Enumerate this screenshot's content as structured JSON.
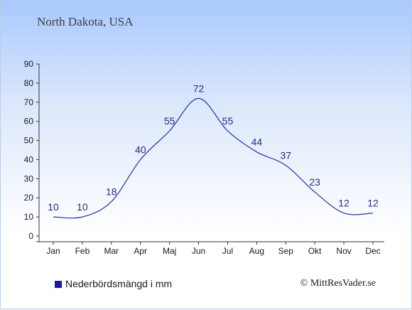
{
  "header": {
    "location": "North Dakota, USA"
  },
  "legend": {
    "label": "Nederbördsmängd i mm"
  },
  "footer": {
    "copyright": "© MittResVader.se"
  },
  "colors": {
    "line": "#2233aa",
    "legend_swatch": "#1a1aa6",
    "axis": "#333333"
  },
  "chart_data": {
    "type": "line",
    "categories": [
      "Jan",
      "Feb",
      "Mar",
      "Apr",
      "Maj",
      "Jun",
      "Jul",
      "Aug",
      "Sep",
      "Okt",
      "Nov",
      "Dec"
    ],
    "series": [
      {
        "name": "Nederbördsmängd i mm",
        "values": [
          10,
          10,
          18,
          40,
          55,
          72,
          55,
          44,
          37,
          23,
          12,
          12
        ]
      }
    ],
    "ylim": [
      0,
      90
    ],
    "yticks": [
      0,
      10,
      20,
      30,
      40,
      50,
      60,
      70,
      80,
      90
    ],
    "data_labels": true,
    "grid": false,
    "legend_position": "bottom-left"
  }
}
